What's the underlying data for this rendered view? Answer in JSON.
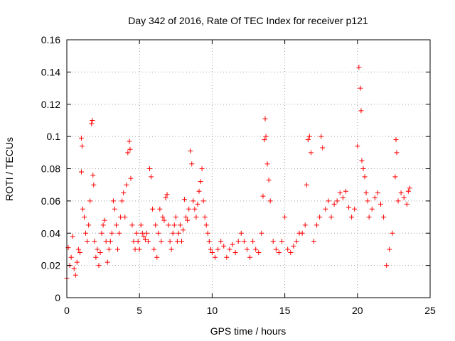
{
  "chart_data": {
    "type": "scatter",
    "title": "Day 342 of 2016, Rate Of TEC Index for receiver p121",
    "xlabel": "GPS time / hours",
    "ylabel": "ROTI / TECUs",
    "xlim": [
      0,
      25
    ],
    "ylim": [
      0,
      0.16
    ],
    "xticks": [
      0,
      5,
      10,
      15,
      20,
      25
    ],
    "xtick_labels": [
      "0",
      "5",
      "10",
      "15",
      "20",
      "25"
    ],
    "yticks": [
      0,
      0.02,
      0.04,
      0.06,
      0.08,
      0.1,
      0.12,
      0.14,
      0.16
    ],
    "ytick_labels": [
      "0",
      "0.02",
      "0.04",
      "0.06",
      "0.08",
      "0.1",
      "0.12",
      "0.14",
      "0.16"
    ],
    "grid": true,
    "marker": "+",
    "color": "#ff0000",
    "series": [
      {
        "x": [
          0.0,
          0.1,
          0.2,
          0.3,
          0.4,
          0.5,
          0.6,
          0.7,
          0.8,
          0.9,
          1.0,
          1.0,
          1.05,
          1.1,
          1.2,
          1.3,
          1.4,
          1.5,
          1.6,
          1.7,
          1.75,
          1.8,
          1.85,
          1.9,
          2.0,
          2.1,
          2.2,
          2.3,
          2.4,
          2.5,
          2.6,
          2.7,
          2.8,
          2.9,
          3.0,
          3.1,
          3.2,
          3.3,
          3.4,
          3.5,
          3.6,
          3.7,
          3.8,
          3.9,
          4.0,
          4.1,
          4.2,
          4.3,
          4.35,
          4.4,
          4.5,
          4.6,
          4.7,
          4.8,
          4.9,
          5.0,
          5.1,
          5.2,
          5.3,
          5.4,
          5.5,
          5.6,
          5.7,
          5.8,
          5.9,
          6.0,
          6.1,
          6.2,
          6.3,
          6.4,
          6.5,
          6.6,
          6.7,
          6.8,
          6.9,
          7.0,
          7.1,
          7.2,
          7.3,
          7.4,
          7.5,
          7.6,
          7.7,
          7.8,
          7.9,
          8.0,
          8.1,
          8.2,
          8.3,
          8.4,
          8.5,
          8.6,
          8.7,
          8.8,
          8.9,
          9.0,
          9.1,
          9.2,
          9.3,
          9.4,
          9.5,
          9.6,
          9.7,
          9.8,
          9.9,
          10.0,
          10.2,
          10.4,
          10.6,
          10.8,
          11.0,
          11.2,
          11.4,
          11.6,
          11.8,
          12.0,
          12.2,
          12.4,
          12.6,
          12.8,
          13.0,
          13.2,
          13.4,
          13.5,
          13.6,
          13.65,
          13.7,
          13.8,
          13.9,
          14.0,
          14.2,
          14.4,
          14.6,
          14.8,
          15.0,
          15.2,
          15.4,
          15.6,
          15.8,
          16.0,
          16.2,
          16.4,
          16.5,
          16.6,
          16.7,
          16.8,
          17.0,
          17.2,
          17.4,
          17.5,
          17.6,
          17.8,
          18.0,
          18.2,
          18.4,
          18.6,
          18.8,
          19.0,
          19.2,
          19.4,
          19.6,
          19.8,
          20.0,
          20.1,
          20.2,
          20.25,
          20.3,
          20.4,
          20.5,
          20.6,
          20.7,
          20.8,
          21.0,
          21.2,
          21.4,
          21.6,
          21.8,
          22.0,
          22.2,
          22.4,
          22.6,
          22.65,
          22.7,
          22.8,
          23.0,
          23.2,
          23.4,
          23.5,
          23.6
        ],
        "y": [
          0.012,
          0.031,
          0.02,
          0.025,
          0.038,
          0.018,
          0.014,
          0.022,
          0.03,
          0.028,
          0.078,
          0.099,
          0.094,
          0.055,
          0.05,
          0.04,
          0.035,
          0.045,
          0.06,
          0.108,
          0.11,
          0.076,
          0.07,
          0.035,
          0.025,
          0.03,
          0.02,
          0.028,
          0.04,
          0.045,
          0.048,
          0.035,
          0.022,
          0.03,
          0.035,
          0.04,
          0.06,
          0.055,
          0.045,
          0.03,
          0.04,
          0.05,
          0.06,
          0.065,
          0.05,
          0.07,
          0.09,
          0.097,
          0.092,
          0.074,
          0.045,
          0.035,
          0.03,
          0.04,
          0.035,
          0.03,
          0.045,
          0.04,
          0.038,
          0.036,
          0.04,
          0.035,
          0.08,
          0.075,
          0.055,
          0.03,
          0.045,
          0.025,
          0.04,
          0.055,
          0.035,
          0.05,
          0.048,
          0.062,
          0.064,
          0.045,
          0.035,
          0.03,
          0.04,
          0.045,
          0.05,
          0.035,
          0.04,
          0.045,
          0.035,
          0.042,
          0.061,
          0.05,
          0.048,
          0.055,
          0.091,
          0.083,
          0.06,
          0.055,
          0.05,
          0.058,
          0.066,
          0.072,
          0.08,
          0.06,
          0.05,
          0.045,
          0.04,
          0.035,
          0.03,
          0.028,
          0.025,
          0.03,
          0.035,
          0.032,
          0.025,
          0.03,
          0.033,
          0.028,
          0.035,
          0.04,
          0.035,
          0.03,
          0.025,
          0.035,
          0.03,
          0.028,
          0.04,
          0.063,
          0.098,
          0.111,
          0.1,
          0.083,
          0.073,
          0.06,
          0.035,
          0.03,
          0.028,
          0.035,
          0.05,
          0.03,
          0.028,
          0.032,
          0.035,
          0.04,
          0.04,
          0.045,
          0.07,
          0.098,
          0.1,
          0.09,
          0.035,
          0.045,
          0.05,
          0.1,
          0.093,
          0.055,
          0.06,
          0.05,
          0.058,
          0.06,
          0.065,
          0.062,
          0.066,
          0.056,
          0.05,
          0.055,
          0.094,
          0.143,
          0.13,
          0.116,
          0.085,
          0.08,
          0.075,
          0.065,
          0.06,
          0.05,
          0.055,
          0.062,
          0.065,
          0.058,
          0.05,
          0.02,
          0.03,
          0.04,
          0.075,
          0.098,
          0.09,
          0.06,
          0.065,
          0.062,
          0.058,
          0.066,
          0.068
        ]
      }
    ]
  }
}
